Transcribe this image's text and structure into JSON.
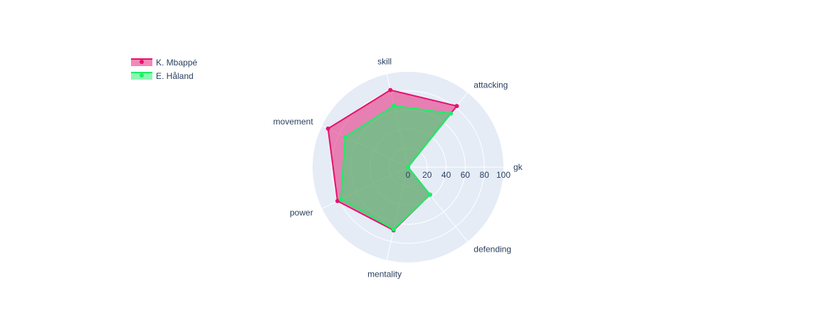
{
  "chart_data": {
    "type": "radar",
    "categories": [
      "gk",
      "attacking",
      "skill",
      "movement",
      "power",
      "mentality",
      "defending"
    ],
    "series": [
      {
        "name": "K. Mbappé",
        "values": [
          0,
          82,
          83,
          93,
          82,
          68,
          37
        ],
        "color": "#e8116e"
      },
      {
        "name": "E. Håland",
        "values": [
          0,
          72,
          66,
          73,
          78,
          67,
          37
        ],
        "color": "#19f066"
      }
    ],
    "radial_ticks": [
      "0",
      "20",
      "40",
      "60",
      "80",
      "100"
    ],
    "radial_range": [
      0,
      100
    ],
    "legend_position": "top-left",
    "grid": true,
    "background_color": "#e5ecf6",
    "overlap_color": "#79ba84"
  }
}
